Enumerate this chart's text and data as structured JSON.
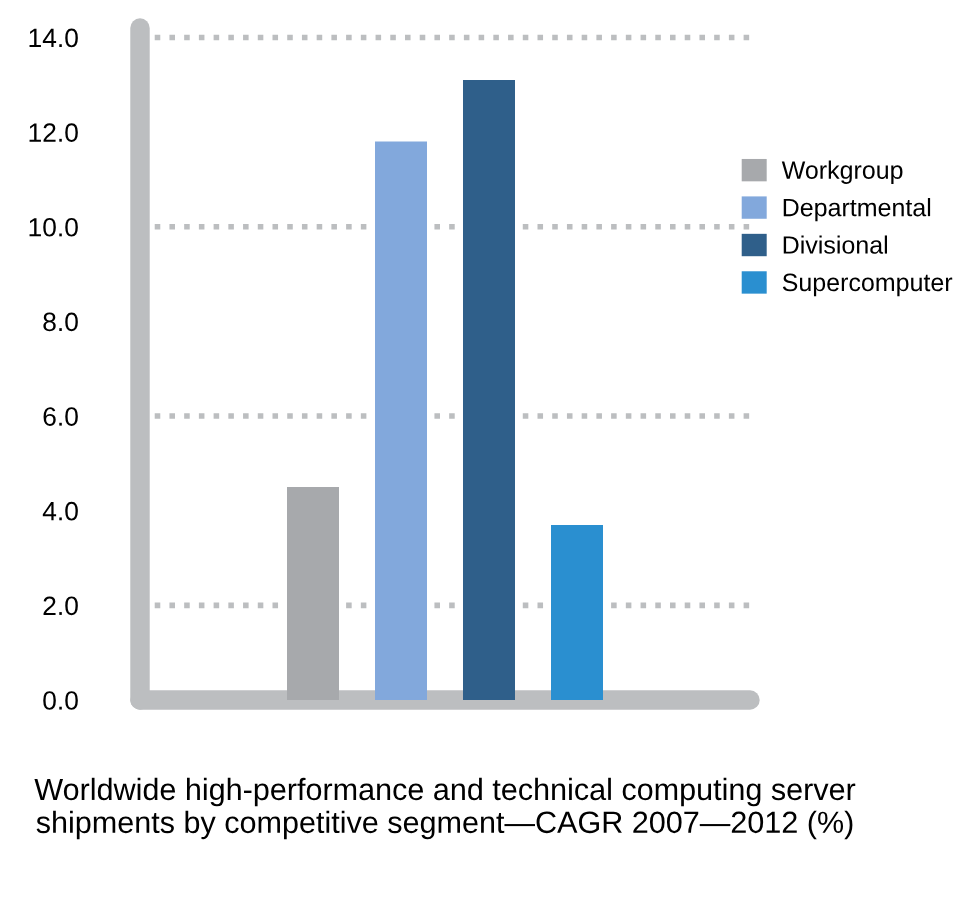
{
  "chart_data": {
    "type": "bar",
    "xlabel": "Worldwide high-performance and technical computing server shipments by competitive segment—CAGR 2007—2012 (%)",
    "categories": [
      null
    ],
    "series": [
      {
        "name": "Workgroup",
        "color": "#a7a9ac",
        "values": [
          4.5
        ]
      },
      {
        "name": "Departmental",
        "color": "#82a8dc",
        "values": [
          11.8
        ]
      },
      {
        "name": "Divisional",
        "color": "#2f5f8a",
        "values": [
          13.1
        ]
      },
      {
        "name": "Supercomputer",
        "color": "#2a8fd0",
        "values": [
          3.7
        ]
      }
    ],
    "ylim": [
      0,
      14.2
    ],
    "yticks": [
      {
        "value": 0,
        "label": "0.0"
      },
      {
        "value": 2,
        "label": "2.0"
      },
      {
        "value": 4,
        "label": "4.0"
      },
      {
        "value": 6,
        "label": "6.0"
      },
      {
        "value": 8,
        "label": "8.0"
      },
      {
        "value": 10,
        "label": "10.0"
      },
      {
        "value": 12,
        "label": "12.0"
      },
      {
        "value": 14,
        "label": "14.0"
      }
    ],
    "ref_lines": [
      {
        "axis": "y",
        "value": 2,
        "color": "#bcbec0",
        "line_style": "dotted"
      },
      {
        "axis": "y",
        "value": 6,
        "color": "#bcbec0",
        "line_style": "dotted"
      },
      {
        "axis": "y",
        "value": 10,
        "color": "#bcbec0",
        "line_style": "dotted"
      },
      {
        "axis": "y",
        "value": 14,
        "color": "#bcbec0",
        "line_style": "dotted"
      }
    ],
    "tick_labels": "y",
    "legend": "right",
    "grid": false
  }
}
